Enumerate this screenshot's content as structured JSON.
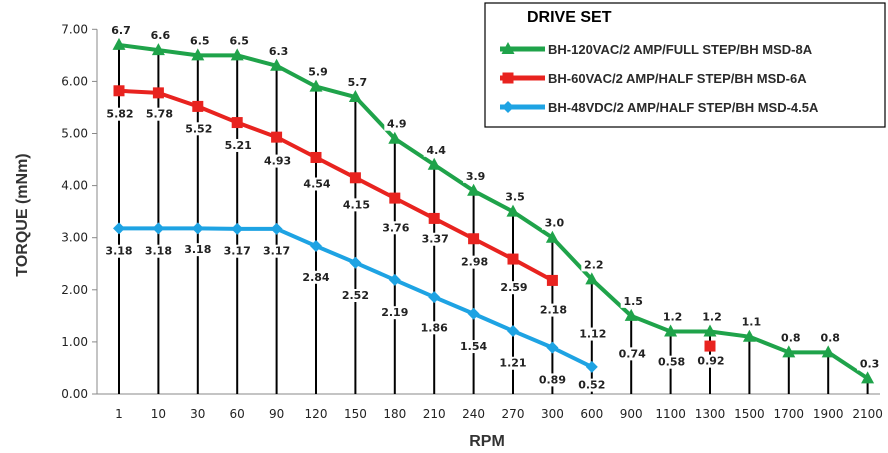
{
  "chart_data": {
    "type": "line",
    "title": "",
    "xlabel": "RPM",
    "ylabel": "TORQUE (mNm)",
    "categories": [
      "1",
      "10",
      "30",
      "60",
      "90",
      "120",
      "150",
      "180",
      "210",
      "240",
      "270",
      "300",
      "600",
      "900",
      "1100",
      "1300",
      "1500",
      "1700",
      "1900",
      "2100"
    ],
    "y_ticks": [
      "0.00",
      "1.00",
      "2.00",
      "3.00",
      "4.00",
      "5.00",
      "6.00",
      "7.00"
    ],
    "ylim": [
      0,
      7
    ],
    "grid": "vertical drop lines at each category",
    "legend": {
      "title": "DRIVE SET",
      "position": "top-right"
    },
    "series": [
      {
        "name": "BH-120VAC/2 AMP/FULL STEP/BH MSD-8A",
        "color": "#1fa34a",
        "marker": "triangle",
        "values": [
          6.7,
          6.6,
          6.5,
          6.5,
          6.3,
          5.9,
          5.7,
          4.9,
          4.4,
          3.9,
          3.5,
          3.0,
          2.2,
          1.5,
          1.2,
          1.2,
          1.1,
          0.8,
          0.8,
          0.3
        ],
        "labels": [
          "6.7",
          "6.6",
          "6.5",
          "6.5",
          "6.3",
          "5.9",
          "5.7",
          "4.9",
          "4.4",
          "3.9",
          "3.5",
          "3.0",
          "2.2",
          "1.5",
          "1.2",
          "1.2",
          "1.1",
          "0.8",
          "0.8",
          "0.3"
        ]
      },
      {
        "name": "BH-60VAC/2 AMP/HALF STEP/BH MSD-6A",
        "color": "#e8231f",
        "marker": "square",
        "values": [
          5.82,
          5.78,
          5.52,
          5.21,
          4.93,
          4.54,
          4.15,
          3.76,
          3.37,
          2.98,
          2.59,
          2.18,
          null,
          null,
          null,
          0.92,
          null,
          null,
          null,
          null
        ],
        "labels": [
          "5.82",
          "5.78",
          "5.52",
          "5.21",
          "4.93",
          "4.54",
          "4.15",
          "3.76",
          "3.37",
          "2.98",
          "2.59",
          "2.18",
          "1.12",
          "0.74",
          "0.58",
          "0.92",
          "",
          "",
          "",
          ""
        ]
      },
      {
        "name": "BH-48VDC/2 AMP/HALF STEP/BH MSD-4.5A",
        "color": "#1ea3e3",
        "marker": "diamond",
        "values": [
          3.18,
          3.18,
          3.18,
          3.17,
          3.17,
          2.84,
          2.52,
          2.19,
          1.86,
          1.54,
          1.21,
          0.89,
          0.52,
          null,
          null,
          null,
          null,
          null,
          null,
          null
        ],
        "labels": [
          "3.18",
          "3.18",
          "3.18",
          "3.17",
          "3.17",
          "2.84",
          "2.52",
          "2.19",
          "1.86",
          "1.54",
          "1.21",
          "0.89",
          "0.52",
          "",
          "",
          "",
          "",
          "",
          "",
          ""
        ]
      }
    ]
  }
}
